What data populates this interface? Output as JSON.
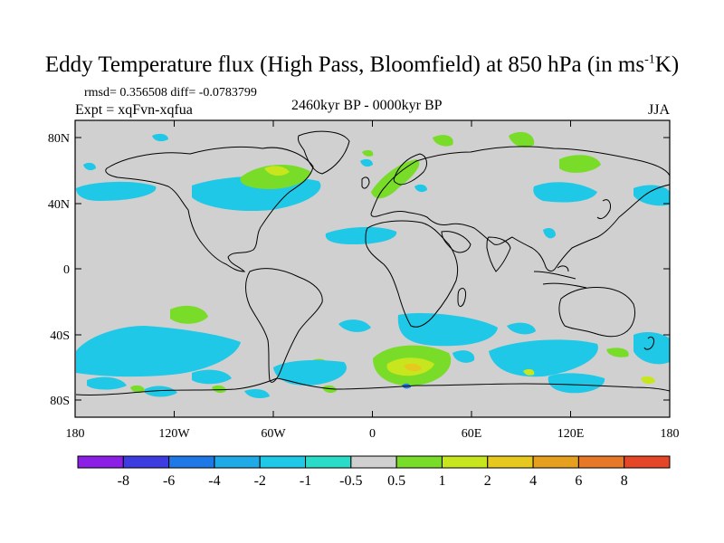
{
  "title": {
    "main": "Eddy Temperature flux (High Pass, Bloomfield) at 850 hPa (in ms",
    "sup": "-1",
    "end": "K)"
  },
  "stats": "rmsd= 0.356508 diff= -0.0783799",
  "expt": "Expt = xqFvn-xqfua",
  "period": "2460kyr BP - 0000kyr BP",
  "season": "JJA",
  "axes": {
    "y_ticks": [
      "80N",
      "40N",
      "0",
      "40S",
      "80S"
    ],
    "x_ticks": [
      "180",
      "120W",
      "60W",
      "0",
      "60E",
      "120E",
      "180"
    ]
  },
  "colorbar": {
    "colors": [
      "#8c1fe6",
      "#3c3ce0",
      "#1e78e6",
      "#1eaae6",
      "#1ec8e6",
      "#28dcc8",
      "#d0d0d0",
      "#78dc28",
      "#c8e61e",
      "#e6c81e",
      "#e6a01e",
      "#e67828",
      "#e64628"
    ],
    "labels": [
      "-8",
      "-6",
      "-4",
      "-2",
      "-1",
      "-0.5",
      "0.5",
      "1",
      "2",
      "4",
      "6",
      "8"
    ]
  },
  "colors": {
    "background_field": "#d0d0d0",
    "cyan": "#1ec8e6",
    "teal": "#28dcc8",
    "green": "#78dc28",
    "yellow_green": "#c8e61e",
    "yellow": "#e6c81e"
  }
}
